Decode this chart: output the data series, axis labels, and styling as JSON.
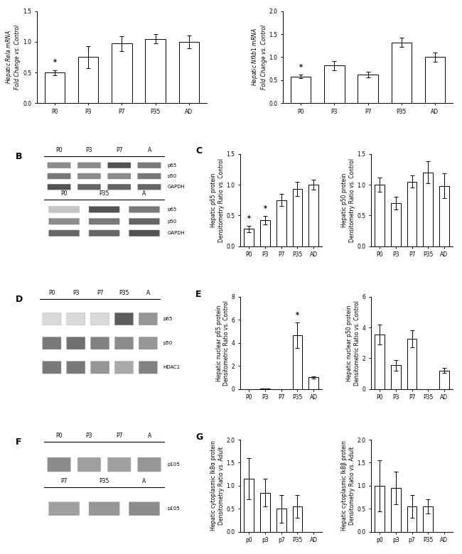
{
  "panel_A_left": {
    "categories": [
      "P0",
      "P3",
      "P7",
      "P35",
      "AD"
    ],
    "values": [
      0.5,
      0.75,
      0.97,
      1.05,
      1.0
    ],
    "errors": [
      0.04,
      0.18,
      0.12,
      0.08,
      0.1
    ],
    "ylabel": "Hepatic Rela mRNA\nFold Change vs. Control",
    "ylim": [
      0.0,
      1.5
    ],
    "yticks": [
      0.0,
      0.5,
      1.0,
      1.5
    ],
    "star_idx": [
      0
    ]
  },
  "panel_A_right": {
    "categories": [
      "P0",
      "P3",
      "P7",
      "P35",
      "AD"
    ],
    "values": [
      0.58,
      0.82,
      0.62,
      1.32,
      1.0
    ],
    "errors": [
      0.04,
      0.1,
      0.06,
      0.1,
      0.1
    ],
    "ylabel": "Hepatic Nfkb1 mRNA\nFold Change vs. Control",
    "ylim": [
      0.0,
      2.0
    ],
    "yticks": [
      0.0,
      0.5,
      1.0,
      1.5,
      2.0
    ],
    "star_idx": [
      0
    ]
  },
  "panel_C_left": {
    "categories": [
      "P0",
      "P3",
      "P7",
      "P35",
      "AD"
    ],
    "values": [
      0.28,
      0.42,
      0.75,
      0.93,
      1.0
    ],
    "errors": [
      0.05,
      0.07,
      0.1,
      0.12,
      0.08
    ],
    "ylabel": "Hepatic p65 protein\nDensitometry Ratio vs. Control",
    "ylim": [
      0.0,
      1.5
    ],
    "yticks": [
      0.0,
      0.5,
      1.0,
      1.5
    ],
    "star_idx": [
      0,
      1
    ]
  },
  "panel_C_right": {
    "categories": [
      "P0",
      "P3",
      "P7",
      "P35",
      "AD"
    ],
    "values": [
      1.0,
      0.7,
      1.05,
      1.2,
      0.98
    ],
    "errors": [
      0.12,
      0.1,
      0.1,
      0.18,
      0.2
    ],
    "ylabel": "Hepatic p50 protein\nDensitometry Ratio vs. Control",
    "ylim": [
      0.0,
      1.5
    ],
    "yticks": [
      0.0,
      0.5,
      1.0,
      1.5
    ],
    "star_idx": []
  },
  "panel_E_left": {
    "categories": [
      "P0",
      "P3",
      "P7",
      "P35",
      "AD"
    ],
    "values": [
      0.0,
      0.05,
      0.0,
      4.65,
      1.0
    ],
    "errors": [
      0.0,
      0.0,
      0.0,
      1.1,
      0.1
    ],
    "ylabel": "Hepatic nuclear p65 protein\nDensitometric Ratio vs. Control",
    "ylim": [
      0,
      8
    ],
    "yticks": [
      0,
      2,
      4,
      6,
      8
    ],
    "star_idx": [
      3
    ]
  },
  "panel_E_right": {
    "categories": [
      "P0",
      "P3",
      "P7",
      "P35",
      "AD"
    ],
    "values": [
      3.55,
      1.55,
      3.25,
      0.0,
      1.2
    ],
    "errors": [
      0.65,
      0.35,
      0.55,
      0.0,
      0.15
    ],
    "ylabel": "Hepatic nuclear p50 protein\nDensitometric Ratio vs. Control",
    "ylim": [
      0,
      6
    ],
    "yticks": [
      0,
      2,
      4,
      6
    ],
    "star_idx": []
  },
  "panel_G_left": {
    "categories": [
      "p0",
      "p3",
      "p7",
      "P35",
      "AD"
    ],
    "values": [
      1.15,
      0.85,
      0.5,
      0.55,
      0.0
    ],
    "errors": [
      0.45,
      0.3,
      0.3,
      0.25,
      0.0
    ],
    "ylabel": "Hepatic cytoplasmic IkBa protein\nDensitometry Ratio vs. Adult",
    "ylim": [
      0.0,
      2.0
    ],
    "yticks": [
      0.0,
      0.5,
      1.0,
      1.5,
      2.0
    ],
    "star_idx": []
  },
  "panel_G_right": {
    "categories": [
      "p0",
      "p3",
      "p7",
      "P35",
      "AD"
    ],
    "values": [
      1.0,
      0.95,
      0.55,
      0.55,
      0.0
    ],
    "errors": [
      0.55,
      0.35,
      0.25,
      0.15,
      0.0
    ],
    "ylabel": "Hepatic cytoplasmic IkBb protein\nDensitometry Ratio vs. Adult",
    "ylim": [
      0.0,
      2.0
    ],
    "yticks": [
      0.0,
      0.5,
      1.0,
      1.5,
      2.0
    ],
    "star_idx": []
  },
  "bg_color": "#ffffff",
  "bar_color": "#ffffff",
  "bar_edge_color": "#000000",
  "label_fontsize": 5.5,
  "tick_fontsize": 5.5,
  "panel_label_fontsize": 9
}
